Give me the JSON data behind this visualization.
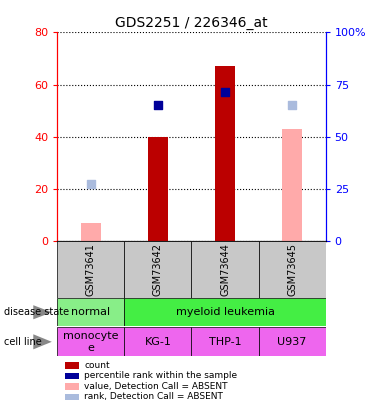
{
  "title": "GDS2251 / 226346_at",
  "samples": [
    "GSM73641",
    "GSM73642",
    "GSM73644",
    "GSM73645"
  ],
  "count_values": [
    null,
    40,
    67,
    null
  ],
  "percentile_rank": [
    null,
    52,
    57,
    null
  ],
  "absent_value": [
    7,
    null,
    null,
    43
  ],
  "absent_rank": [
    22,
    null,
    null,
    52
  ],
  "ylim_left": [
    0,
    80
  ],
  "ylim_right": [
    0,
    100
  ],
  "yticks_left": [
    0,
    20,
    40,
    60,
    80
  ],
  "yticks_right": [
    0,
    25,
    50,
    75,
    100
  ],
  "ytick_labels_right": [
    "0",
    "25",
    "50",
    "75",
    "100%"
  ],
  "bar_color_count": "#bb0000",
  "bar_color_absent_value": "#ffaaaa",
  "dot_color_percentile": "#000099",
  "dot_color_absent_rank": "#aabbdd",
  "bar_width": 0.3,
  "dot_size": 35,
  "disease_normal_color": "#88ee88",
  "disease_leukemia_color": "#44ee44",
  "cell_color": "#ee66ee",
  "gray_label_color": "#c8c8c8",
  "legend_items": [
    {
      "label": "count",
      "color": "#bb0000"
    },
    {
      "label": "percentile rank within the sample",
      "color": "#000099"
    },
    {
      "label": "value, Detection Call = ABSENT",
      "color": "#ffaaaa"
    },
    {
      "label": "rank, Detection Call = ABSENT",
      "color": "#aabbdd"
    }
  ]
}
